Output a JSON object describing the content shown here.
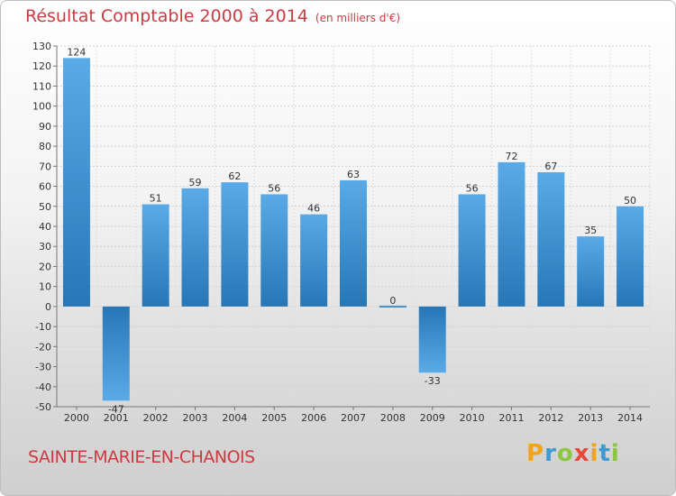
{
  "title": "Résultat Comptable 2000 à 2014",
  "unit": "(en milliers d'€)",
  "commune": "SAINTE-MARIE-EN-CHANOIS",
  "logo": {
    "letters": [
      "P",
      "r",
      "o",
      "x",
      "i",
      "t",
      "i"
    ],
    "colors": [
      "#f0a31b",
      "#3f9ad4",
      "#8dc63f",
      "#e8473b",
      "#f0a31b",
      "#3f9ad4",
      "#8dc63f"
    ]
  },
  "chart_data": {
    "type": "bar",
    "categories": [
      "2000",
      "2001",
      "2002",
      "2003",
      "2004",
      "2005",
      "2006",
      "2007",
      "2008",
      "2009",
      "2010",
      "2011",
      "2012",
      "2013",
      "2014"
    ],
    "values": [
      124,
      -47,
      51,
      59,
      62,
      56,
      46,
      63,
      0,
      -33,
      56,
      72,
      67,
      35,
      50
    ],
    "value_labels": [
      "124",
      "-47",
      "51",
      "59",
      "62",
      "56",
      "46",
      "63",
      "0",
      "-33",
      "56",
      "72",
      "67",
      "35",
      "50"
    ],
    "ylim": [
      -50,
      130
    ],
    "yticks": [
      -50,
      -40,
      -30,
      -20,
      -10,
      0,
      10,
      20,
      30,
      40,
      50,
      60,
      70,
      80,
      90,
      100,
      110,
      120,
      130
    ],
    "grid": true,
    "colors": {
      "bar_light": "#5aaae8",
      "bar_dark": "#2776b5"
    }
  }
}
